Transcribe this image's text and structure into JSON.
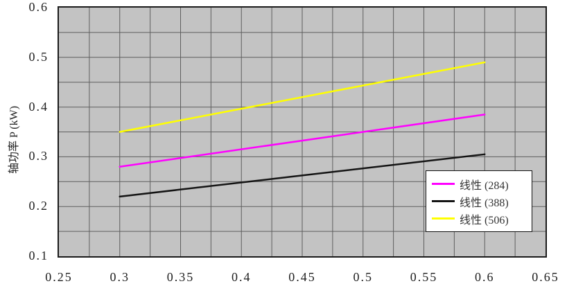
{
  "chart_data": {
    "type": "line",
    "title": "",
    "xlabel": "",
    "ylabel": "轴功率 P (kW)",
    "xlim": [
      0.25,
      0.65
    ],
    "ylim": [
      0.1,
      0.6
    ],
    "x_grid_step": 0.025,
    "y_grid_step": 0.05,
    "x_ticks": [
      "0.25",
      "0.3",
      "0.35",
      "0.4",
      "0.45",
      "0.5",
      "0.55",
      "0.6",
      "0.65"
    ],
    "y_ticks": [
      "0.1",
      "0.2",
      "0.3",
      "0.4",
      "0.5",
      "0.6"
    ],
    "grid": true,
    "plot_bg_color": "#c3c3c3",
    "grid_color": "#5e5e5e",
    "border_color": "#1a1a1a",
    "legend_position": "inside-bottom-right",
    "series": [
      {
        "name": "线性 (284)",
        "color": "#ff00ff",
        "x": [
          0.3,
          0.6
        ],
        "y": [
          0.28,
          0.385
        ]
      },
      {
        "name": "线性 (388)",
        "color": "#141414",
        "x": [
          0.3,
          0.6
        ],
        "y": [
          0.22,
          0.305
        ]
      },
      {
        "name": "线性 (506)",
        "color": "#ffff00",
        "x": [
          0.3,
          0.6
        ],
        "y": [
          0.35,
          0.49
        ]
      }
    ]
  }
}
